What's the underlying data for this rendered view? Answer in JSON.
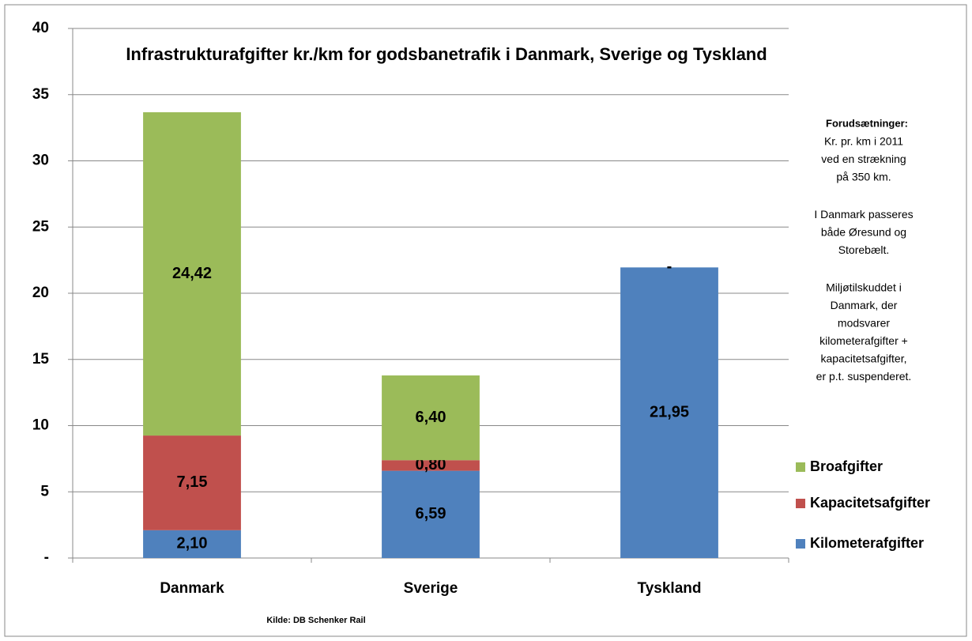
{
  "chart_data": {
    "type": "bar",
    "stacked": true,
    "title": "Infrastrukturafgifter kr./km for godsbanetrafik i Danmark, Sverige og Tyskland",
    "categories": [
      "Danmark",
      "Sverige",
      "Tyskland"
    ],
    "series": [
      {
        "name": "Kilometerafgifter",
        "color": "#4f81bd",
        "values": [
          2.1,
          6.59,
          21.95
        ],
        "value_labels": [
          "2,10",
          "6,59",
          "21,95"
        ]
      },
      {
        "name": "Kapacitetsafgifter",
        "color": "#c0504d",
        "values": [
          7.15,
          0.8,
          0
        ],
        "value_labels": [
          "7,15",
          "0,80",
          null
        ]
      },
      {
        "name": "Broafgifter",
        "color": "#9bbb59",
        "values": [
          24.42,
          6.4,
          0
        ],
        "value_labels": [
          "24,42",
          "6,40",
          "-"
        ]
      }
    ],
    "ylim": [
      0,
      40
    ],
    "yticks": [
      {
        "value": 0,
        "label": "-"
      },
      5,
      10,
      15,
      20,
      25,
      30,
      35,
      40
    ],
    "grid": true,
    "legend": "right",
    "notes": {
      "heading": "Forudsætninger:",
      "paragraphs": [
        [
          "Kr. pr. km i 2011",
          "ved en strækning",
          "på 350 km."
        ],
        [
          "I Danmark passeres",
          "både Øresund og",
          "Storebælt."
        ],
        [
          "Miljøtilskuddet i",
          "Danmark, der",
          "modsvarer",
          "kilometerafgifter +",
          "kapacitetsafgifter,",
          "er p.t. suspenderet."
        ]
      ]
    },
    "source": "Kilde: DB Schenker Rail"
  }
}
